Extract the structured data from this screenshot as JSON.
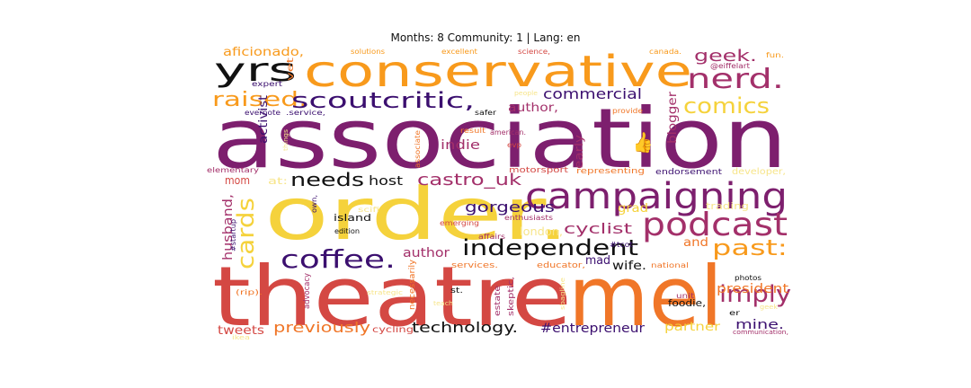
{
  "title": "Months: 8 Community: 1 | Lang: en",
  "colors": {
    "deep_purple": "#3b0f6f",
    "purple": "#7d1f6e",
    "magenta": "#a3306a",
    "red": "#d44843",
    "orange": "#f07628",
    "amber": "#f89a1c",
    "yellow": "#f5d23c",
    "pale_yellow": "#f7e58a",
    "black": "#111111"
  },
  "words": [
    {
      "text": "association",
      "color": "purple"
    },
    {
      "text": "order.",
      "color": "yellow"
    },
    {
      "text": "theatre",
      "color": "red"
    },
    {
      "text": "mel",
      "color": "orange"
    },
    {
      "text": "conservative",
      "color": "amber"
    },
    {
      "text": "campaigning",
      "color": "purple"
    },
    {
      "text": "podcast",
      "color": "magenta"
    },
    {
      "text": "yrs",
      "color": "black"
    },
    {
      "text": "nerd.",
      "color": "magenta"
    },
    {
      "text": "raised.",
      "color": "amber"
    },
    {
      "text": "scoutcritic,",
      "color": "deep_purple"
    },
    {
      "text": "comics",
      "color": "yellow"
    },
    {
      "text": "geek.",
      "color": "magenta"
    },
    {
      "text": "commercial",
      "color": "deep_purple"
    },
    {
      "text": "coffee.",
      "color": "deep_purple"
    },
    {
      "text": "independent",
      "color": "black"
    },
    {
      "text": "past:",
      "color": "amber"
    },
    {
      "text": "imply",
      "color": "magenta"
    },
    {
      "text": "cards",
      "color": "yellow"
    },
    {
      "text": "needs",
      "color": "black"
    },
    {
      "text": "castro_uk",
      "color": "magenta"
    },
    {
      "text": "host",
      "color": "black"
    },
    {
      "text": "gorgeous",
      "color": "deep_purple"
    },
    {
      "text": "cyclist",
      "color": "magenta"
    },
    {
      "text": "author,",
      "color": "magenta"
    },
    {
      "text": "indie",
      "color": "magenta"
    },
    {
      "text": "author",
      "color": "magenta"
    },
    {
      "text": "previously",
      "color": "orange"
    },
    {
      "text": "technology.",
      "color": "black"
    },
    {
      "text": "#entrepreneur",
      "color": "deep_purple"
    },
    {
      "text": "tweets",
      "color": "red"
    },
    {
      "text": "mine.",
      "color": "deep_purple"
    },
    {
      "text": "president",
      "color": "orange"
    },
    {
      "text": "partner",
      "color": "yellow"
    },
    {
      "text": "husband,",
      "color": "magenta"
    },
    {
      "text": "activist",
      "color": "deep_purple"
    },
    {
      "text": "blogger",
      "color": "magenta"
    },
    {
      "text": "early",
      "color": "magenta"
    },
    {
      "text": "mom",
      "color": "red"
    },
    {
      "text": "mad",
      "color": "deep_purple"
    },
    {
      "text": "wife.",
      "color": "black"
    },
    {
      "text": "and",
      "color": "orange"
    },
    {
      "text": "aficionado,",
      "color": "amber"
    },
    {
      "text": "grad",
      "color": "yellow"
    },
    {
      "text": "london,",
      "color": "pale_yellow"
    },
    {
      "text": "island",
      "color": "black"
    },
    {
      "text": "foodie,",
      "color": "black"
    },
    {
      "text": "cycling",
      "color": "red"
    },
    {
      "text": "advocacy",
      "color": "magenta"
    },
    {
      "text": "necessarily",
      "color": "orange"
    },
    {
      "text": "skeptic,",
      "color": "magenta"
    },
    {
      "text": "estate",
      "color": "magenta"
    },
    {
      "text": "trading",
      "color": "pale_yellow"
    },
    {
      "text": "developer,",
      "color": "pale_yellow"
    },
    {
      "text": "endorsement",
      "color": "deep_purple"
    },
    {
      "text": "representing",
      "color": "orange"
    },
    {
      "text": "motorsport",
      "color": "red"
    },
    {
      "text": "elementary",
      "color": "magenta"
    },
    {
      "text": "vet",
      "color": "orange"
    },
    {
      "text": "expert",
      "color": "deep_purple"
    },
    {
      "text": "evernote",
      "color": "deep_purple"
    },
    {
      "text": ".service,",
      "color": "deep_purple"
    },
    {
      "text": "safer",
      "color": "black"
    },
    {
      "text": "provide",
      "color": "orange"
    },
    {
      "text": "solutions",
      "color": "amber"
    },
    {
      "text": "excellent",
      "color": "amber"
    },
    {
      "text": "science,",
      "color": "red"
    },
    {
      "text": "canada.",
      "color": "amber"
    },
    {
      "text": "fun.",
      "color": "amber"
    },
    {
      "text": "@eiffelart",
      "color": "magenta"
    },
    {
      "text": "result",
      "color": "orange"
    },
    {
      "text": "american.",
      "color": "magenta"
    },
    {
      "text": "associate",
      "color": "orange"
    },
    {
      "text": "evp",
      "color": "red"
    },
    {
      "text": "at:",
      "color": "pale_yellow"
    },
    {
      "text": "own,",
      "color": "deep_purple"
    },
    {
      "text": "scifi",
      "color": "pale_yellow"
    },
    {
      "text": "edition",
      "color": "black"
    },
    {
      "text": "#startup",
      "color": "deep_purple"
    },
    {
      "text": "emerging",
      "color": "red"
    },
    {
      "text": "enthusiasts",
      "color": "magenta"
    },
    {
      "text": "affairs",
      "color": "magenta"
    },
    {
      "text": "#tcot",
      "color": "deep_purple"
    },
    {
      "text": "services.",
      "color": "orange"
    },
    {
      "text": "educator,",
      "color": "orange"
    },
    {
      "text": "national",
      "color": "orange"
    },
    {
      "text": "photos",
      "color": "black"
    },
    {
      "text": "unit",
      "color": "magenta"
    },
    {
      "text": "er",
      "color": "black"
    },
    {
      "text": "(rip).",
      "color": "orange"
    },
    {
      "text": "st.",
      "color": "black"
    },
    {
      "text": "communication,",
      "color": "magenta"
    },
    {
      "text": "ikea",
      "color": "pale_yellow"
    },
    {
      "text": "geek",
      "color": "pale_yellow"
    },
    {
      "text": "people",
      "color": "pale_yellow"
    },
    {
      "text": "strategic",
      "color": "pale_yellow"
    },
    {
      "text": "sbagline",
      "color": "pale_yellow"
    },
    {
      "text": "teach",
      "color": "pale_yellow"
    },
    {
      "text": "things",
      "color": "pale_yellow"
    },
    {
      "text": "👍",
      "color": "deep_purple"
    }
  ]
}
